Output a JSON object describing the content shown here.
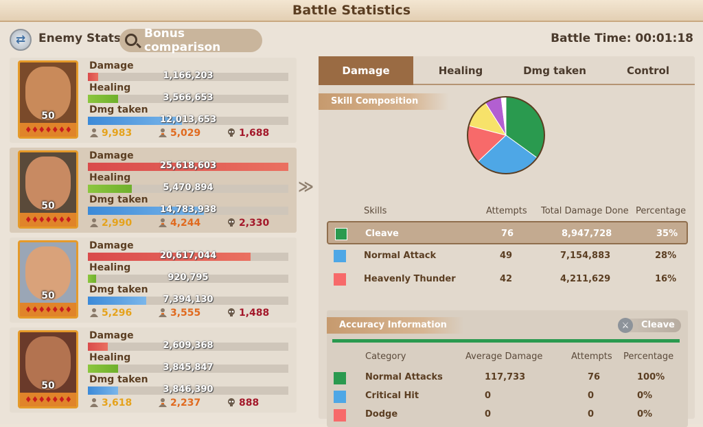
{
  "window": {
    "title": "Battle Statistics"
  },
  "header": {
    "enemy_stats_label": "Enemy Stats",
    "bonus_comparison_label": "Bonus comparison",
    "battle_time_label": "Battle Time: 00:01:18"
  },
  "heroes": [
    {
      "level": "50",
      "stars": "♦♦♦♦♦♦♦",
      "damage_label": "Damage",
      "damage": "1,166,203",
      "damage_fraction": 0.05,
      "healing_label": "Healing",
      "healing": "3,566,653",
      "healing_fraction": 0.15,
      "dmg_taken_label": "Dmg taken",
      "dmg_taken": "12,013,653",
      "dmg_taken_fraction": 0.47,
      "count_a": "9,983",
      "count_b": "5,029",
      "count_c": "1,688"
    },
    {
      "level": "50",
      "stars": "♦♦♦♦♦♦♦",
      "damage_label": "Damage",
      "damage": "25,618,603",
      "damage_fraction": 1.0,
      "healing_label": "Healing",
      "healing": "5,470,894",
      "healing_fraction": 0.22,
      "dmg_taken_label": "Dmg taken",
      "dmg_taken": "14,783,938",
      "dmg_taken_fraction": 0.58,
      "count_a": "2,990",
      "count_b": "4,244",
      "count_c": "2,330"
    },
    {
      "level": "50",
      "stars": "♦♦♦♦♦♦♦",
      "damage_label": "Damage",
      "damage": "20,617,044",
      "damage_fraction": 0.81,
      "healing_label": "Healing",
      "healing": "920,795",
      "healing_fraction": 0.04,
      "dmg_taken_label": "Dmg taken",
      "dmg_taken": "7,394,130",
      "dmg_taken_fraction": 0.29,
      "count_a": "5,296",
      "count_b": "3,555",
      "count_c": "1,488"
    },
    {
      "level": "50",
      "stars": "♦♦♦♦♦♦♦",
      "damage_label": "Damage",
      "damage": "2,609,368",
      "damage_fraction": 0.1,
      "healing_label": "Healing",
      "healing": "3,845,847",
      "healing_fraction": 0.15,
      "dmg_taken_label": "Dmg taken",
      "dmg_taken": "3,846,390",
      "dmg_taken_fraction": 0.15,
      "count_a": "3,618",
      "count_b": "2,237",
      "count_c": "888"
    }
  ],
  "tabs": [
    "Damage",
    "Healing",
    "Dmg taken",
    "Control"
  ],
  "skill_composition": {
    "title": "Skill Composition",
    "headers": {
      "skills": "Skills",
      "attempts": "Attempts",
      "total": "Total Damage Done",
      "percentage": "Percentage"
    },
    "rows": [
      {
        "name": "Cleave",
        "attempts": "76",
        "total": "8,947,728",
        "percentage": "35%",
        "color": "#2a9a4f"
      },
      {
        "name": "Normal Attack",
        "attempts": "49",
        "total": "7,154,883",
        "percentage": "28%",
        "color": "#4ea7e6"
      },
      {
        "name": "Heavenly Thunder",
        "attempts": "42",
        "total": "4,211,629",
        "percentage": "16%",
        "color": "#f76a6a"
      }
    ]
  },
  "chart_data": {
    "type": "pie",
    "slices": [
      {
        "value": 35,
        "color": "#2a9a4f"
      },
      {
        "value": 28,
        "color": "#4ea7e6"
      },
      {
        "value": 16,
        "color": "#f76a6a"
      },
      {
        "value": 12,
        "color": "#f7e26a"
      },
      {
        "value": 7,
        "color": "#b25fd1"
      },
      {
        "value": 2,
        "color": "#ffffff"
      }
    ]
  },
  "accuracy": {
    "title": "Accuracy Information",
    "selected_skill": "Cleave",
    "headers": {
      "category": "Category",
      "avg": "Average Damage",
      "attempts": "Attempts",
      "percentage": "Percentage"
    },
    "rows": [
      {
        "name": "Normal Attacks",
        "avg": "117,733",
        "attempts": "76",
        "percentage": "100%",
        "color": "#2a9a4f"
      },
      {
        "name": "Critical Hit",
        "avg": "0",
        "attempts": "0",
        "percentage": "0%",
        "color": "#4ea7e6"
      },
      {
        "name": "Dodge",
        "avg": "0",
        "attempts": "0",
        "percentage": "0%",
        "color": "#f76a6a"
      }
    ]
  }
}
